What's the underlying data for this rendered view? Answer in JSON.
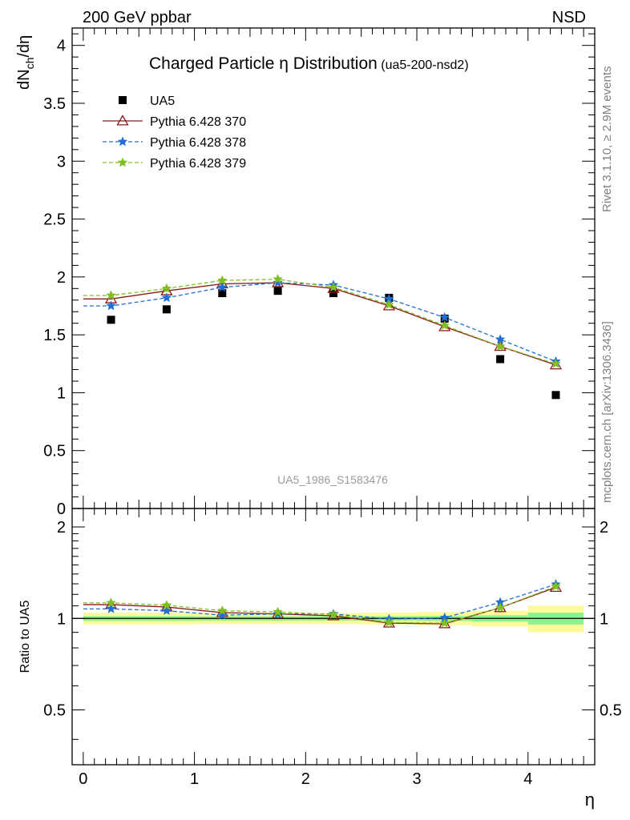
{
  "header": {
    "left": "200 GeV ppbar",
    "right": "NSD"
  },
  "side_texts": {
    "rivet": "Rivet 3.1.10, ≥ 2.9M events",
    "mcplots": "mcplots.cern.ch [arXiv:1306.3436]"
  },
  "chart_data": [
    {
      "type": "scatter",
      "title": "Charged Particle η Distribution",
      "subtitle": "(ua5-200-nsd2)",
      "watermark": "UA5_1986_S1583476",
      "ylabel": "dN_ch/dη",
      "ylim": [
        0,
        4.15
      ],
      "y_ticks": [
        "0",
        "0.5",
        "1",
        "1.5",
        "2",
        "2.5",
        "3",
        "3.5",
        "4"
      ],
      "x": [
        0.25,
        0.75,
        1.25,
        1.75,
        2.25,
        2.75,
        3.25,
        3.75,
        4.25
      ],
      "legend_position": "top-left",
      "series": [
        {
          "name": "UA5",
          "color": "#000000",
          "marker": "square",
          "line": "none",
          "values": [
            1.63,
            1.72,
            1.86,
            1.88,
            1.86,
            1.82,
            1.64,
            1.29,
            0.98
          ]
        },
        {
          "name": "Pythia 6.428 370",
          "color": "#8b1a1a",
          "marker": "triangle-open",
          "line": "solid",
          "values": [
            1.81,
            1.88,
            1.94,
            1.95,
            1.9,
            1.75,
            1.57,
            1.4,
            1.24
          ]
        },
        {
          "name": "Pythia 6.428 378",
          "color": "#1f6fd6",
          "marker": "star",
          "line": "dashed",
          "values": [
            1.75,
            1.82,
            1.91,
            1.95,
            1.93,
            1.81,
            1.65,
            1.46,
            1.27
          ]
        },
        {
          "name": "Pythia 6.428 379",
          "color": "#7fbf1f",
          "marker": "star",
          "line": "dashed",
          "values": [
            1.84,
            1.9,
            1.97,
            1.98,
            1.91,
            1.76,
            1.58,
            1.4,
            1.25
          ]
        }
      ]
    },
    {
      "type": "line",
      "title": "",
      "ylabel": "Ratio to UA5",
      "xlabel": "η",
      "ylim": [
        0.33,
        2.3
      ],
      "xlim": [
        -0.1,
        4.6
      ],
      "x_ticks": [
        "0",
        "1",
        "2",
        "3",
        "4"
      ],
      "y_ticks": [
        "0.5",
        "1",
        "2"
      ],
      "x_edges": [
        0.0,
        0.5,
        1.0,
        1.5,
        2.0,
        2.5,
        3.0,
        3.5,
        4.0,
        4.5
      ],
      "bands": {
        "stat_color": "#8ef08e",
        "total_color": "#fbfb9b",
        "stat_half_widths": [
          0.018,
          0.018,
          0.016,
          0.016,
          0.016,
          0.016,
          0.018,
          0.024,
          0.045
        ],
        "total_half_widths": [
          0.045,
          0.045,
          0.042,
          0.042,
          0.042,
          0.045,
          0.05,
          0.06,
          0.1
        ]
      },
      "x": [
        0.25,
        0.75,
        1.25,
        1.75,
        2.25,
        2.75,
        3.25,
        3.75,
        4.25
      ],
      "series": [
        {
          "name": "Pythia 6.428 370",
          "color": "#8b1a1a",
          "marker": "triangle-open",
          "line": "solid",
          "values": [
            1.11,
            1.09,
            1.045,
            1.035,
            1.02,
            0.965,
            0.96,
            1.085,
            1.265
          ]
        },
        {
          "name": "Pythia 6.428 378",
          "color": "#1f6fd6",
          "marker": "star",
          "line": "dashed",
          "values": [
            1.075,
            1.06,
            1.025,
            1.035,
            1.035,
            0.995,
            1.005,
            1.13,
            1.295
          ]
        },
        {
          "name": "Pythia 6.428 379",
          "color": "#7fbf1f",
          "marker": "star",
          "line": "dashed",
          "values": [
            1.125,
            1.105,
            1.06,
            1.05,
            1.03,
            0.97,
            0.965,
            1.085,
            1.275
          ]
        }
      ]
    }
  ]
}
